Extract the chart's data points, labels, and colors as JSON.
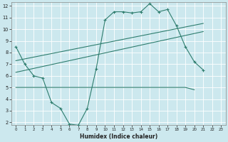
{
  "xlabel": "Humidex (Indice chaleur)",
  "xlim": [
    -0.5,
    23.5
  ],
  "ylim": [
    1.8,
    12.3
  ],
  "yticks": [
    2,
    3,
    4,
    5,
    6,
    7,
    8,
    9,
    10,
    11,
    12
  ],
  "xticks": [
    0,
    1,
    2,
    3,
    4,
    5,
    6,
    7,
    8,
    9,
    10,
    11,
    12,
    13,
    14,
    15,
    16,
    17,
    18,
    19,
    20,
    21,
    22,
    23
  ],
  "bg_color": "#cce8ee",
  "grid_color": "#ffffff",
  "line_color": "#2e7d6e",
  "line1_y": [
    8.5,
    7.0,
    6.0,
    5.8,
    3.7,
    3.2,
    1.85,
    1.75,
    3.2,
    6.6,
    10.8,
    11.5,
    11.5,
    11.4,
    11.5,
    12.2,
    11.5,
    11.7,
    10.3,
    8.5,
    7.2,
    6.5
  ],
  "line1_x": [
    0,
    1,
    2,
    3,
    4,
    5,
    6,
    7,
    8,
    9,
    10,
    11,
    12,
    13,
    14,
    15,
    16,
    17,
    18,
    19,
    20,
    21
  ],
  "line2_y": [
    5.0,
    5.0,
    5.0,
    5.0,
    5.0,
    5.0,
    5.0,
    5.0,
    5.0,
    5.0,
    5.0,
    5.0,
    5.0,
    5.0,
    5.0,
    5.0,
    5.0,
    5.0,
    5.0,
    5.0,
    4.8
  ],
  "line2_x": [
    0,
    1,
    2,
    3,
    4,
    5,
    6,
    7,
    8,
    9,
    10,
    11,
    12,
    13,
    14,
    15,
    16,
    17,
    18,
    19,
    20
  ],
  "line3_x": [
    0,
    21
  ],
  "line3_y": [
    6.3,
    9.8
  ],
  "line4_x": [
    0,
    21
  ],
  "line4_y": [
    7.3,
    10.5
  ]
}
